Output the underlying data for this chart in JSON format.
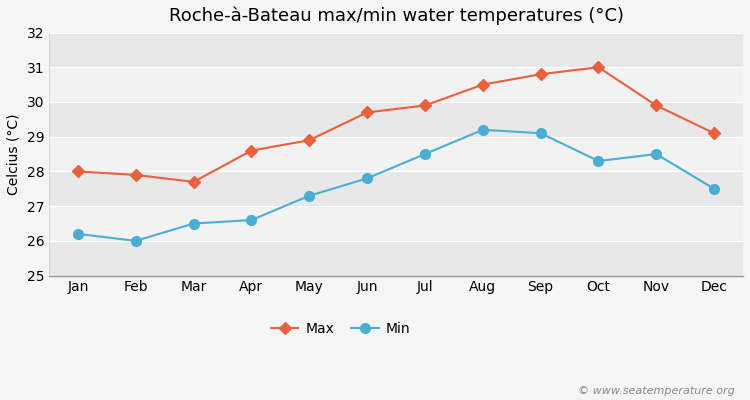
{
  "title": "Roche-à-Bateau max/min water temperatures (°C)",
  "months": [
    "Jan",
    "Feb",
    "Mar",
    "Apr",
    "May",
    "Jun",
    "Jul",
    "Aug",
    "Sep",
    "Oct",
    "Nov",
    "Dec"
  ],
  "max_temps": [
    28.0,
    27.9,
    27.7,
    28.6,
    28.9,
    29.7,
    29.9,
    30.5,
    30.8,
    31.0,
    29.9,
    29.1
  ],
  "min_temps": [
    26.2,
    26.0,
    26.5,
    26.6,
    27.3,
    27.8,
    28.5,
    29.2,
    29.1,
    28.3,
    28.5,
    27.5
  ],
  "max_color": "#e8603c",
  "min_color": "#4aadd4",
  "fig_bg_color": "#f5f5f5",
  "band_colors": [
    "#e8e8e8",
    "#f2f2f2"
  ],
  "ylabel": "Celcius (°C)",
  "ylim": [
    25,
    32
  ],
  "yticks": [
    25,
    26,
    27,
    28,
    29,
    30,
    31,
    32
  ],
  "watermark": "© www.seatemperature.org",
  "title_fontsize": 13,
  "label_fontsize": 10,
  "tick_fontsize": 10
}
